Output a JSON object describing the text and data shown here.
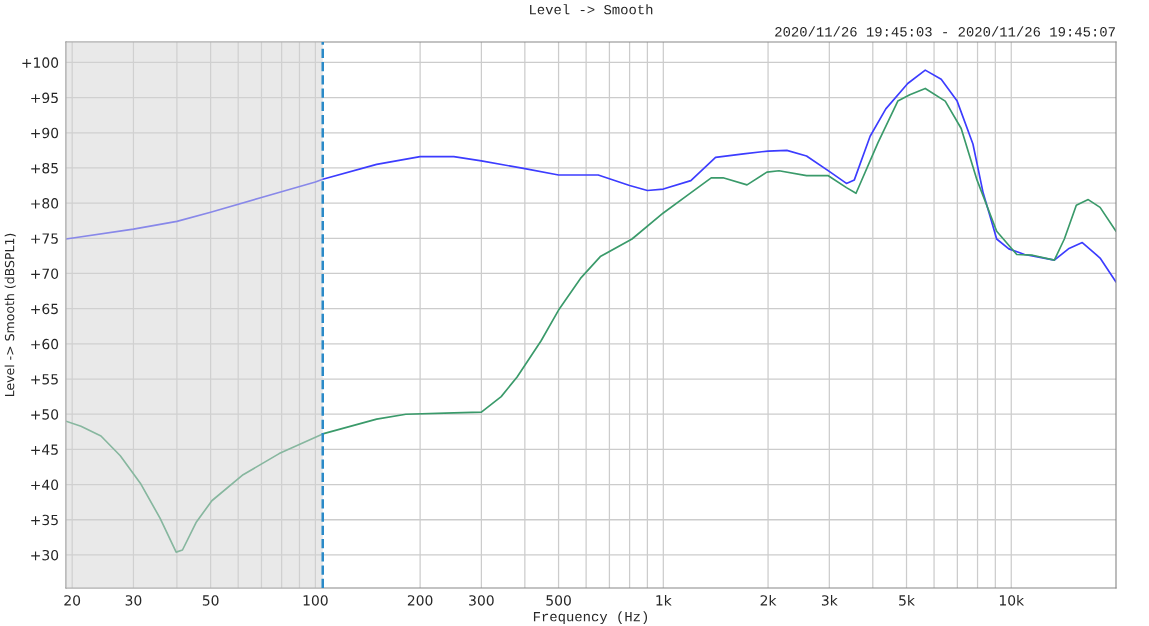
{
  "chart_data": {
    "type": "line",
    "title": "Level -> Smooth",
    "xlabel": "Frequency (Hz)",
    "ylabel": "Level -> Smooth (dBSPL1)",
    "annotations": [
      "2020/11/26 19:45:03 - 2020/11/26 19:45:07"
    ],
    "log": "x",
    "grid": true,
    "legend": false,
    "marker": "none",
    "line_style": "solid",
    "xlim": [
      19.2,
      20000
    ],
    "ylim": [
      25.3,
      102.9
    ],
    "xticks": [
      20,
      30,
      {
        "value": 40,
        "label": null
      },
      50,
      {
        "value": 60,
        "label": null
      },
      {
        "value": 70,
        "label": null
      },
      {
        "value": 80,
        "label": null
      },
      {
        "value": 90,
        "label": null
      },
      100,
      200,
      300,
      {
        "value": 400,
        "label": null
      },
      500,
      {
        "value": 600,
        "label": null
      },
      {
        "value": 700,
        "label": null
      },
      {
        "value": 800,
        "label": null
      },
      {
        "value": 900,
        "label": null
      },
      {
        "value": 1000,
        "label": "1k"
      },
      {
        "value": 2000,
        "label": "2k"
      },
      {
        "value": 3000,
        "label": "3k"
      },
      {
        "value": 4000,
        "label": null
      },
      {
        "value": 5000,
        "label": "5k"
      },
      {
        "value": 6000,
        "label": null
      },
      {
        "value": 7000,
        "label": null
      },
      {
        "value": 8000,
        "label": null
      },
      {
        "value": 9000,
        "label": null
      },
      {
        "value": 10000,
        "label": "10k"
      }
    ],
    "yticks": [
      {
        "value": 30,
        "label": "+30"
      },
      {
        "value": 35,
        "label": "+35"
      },
      {
        "value": 40,
        "label": "+40"
      },
      {
        "value": 45,
        "label": "+45"
      },
      {
        "value": 50,
        "label": "+50"
      },
      {
        "value": 55,
        "label": "+55"
      },
      {
        "value": 60,
        "label": "+60"
      },
      {
        "value": 65,
        "label": "+65"
      },
      {
        "value": 70,
        "label": "+70"
      },
      {
        "value": 75,
        "label": "+75"
      },
      {
        "value": 80,
        "label": "+80"
      },
      {
        "value": 85,
        "label": "+85"
      },
      {
        "value": 90,
        "label": "+90"
      },
      {
        "value": 95,
        "label": "+95"
      },
      {
        "value": 100,
        "label": "+100"
      }
    ],
    "bands": [
      {
        "axis": "x",
        "from": 19.2,
        "to": 105,
        "color": "#d4d4d4"
      }
    ],
    "ref_lines": [
      {
        "axis": "x",
        "value": 105,
        "color": "#2a8ac8",
        "line_style": "dashed"
      }
    ],
    "series": [
      {
        "color": "#3c3cff",
        "x": [
          19.2,
          30,
          40,
          50,
          70,
          100,
          105,
          150,
          200,
          250,
          300,
          400,
          500,
          650,
          800,
          900,
          1000,
          1200,
          1413,
          1700,
          2000,
          2265,
          2580,
          3020,
          3360,
          3540,
          3930,
          4360,
          5040,
          5660,
          6290,
          6990,
          7760,
          8290,
          9080,
          9840,
          10920,
          13300,
          14600,
          16000,
          18000,
          20000
        ],
        "values": [
          74.9,
          76.3,
          77.4,
          78.7,
          80.8,
          83.0,
          83.4,
          85.5,
          86.6,
          86.6,
          86.0,
          84.9,
          84.0,
          84.0,
          82.5,
          81.8,
          82.0,
          83.2,
          86.5,
          87.0,
          87.4,
          87.5,
          86.7,
          84.4,
          82.8,
          83.3,
          89.5,
          93.4,
          97.0,
          98.9,
          97.6,
          94.5,
          88.4,
          81.6,
          74.9,
          73.5,
          72.7,
          71.9,
          73.5,
          74.4,
          72.2,
          68.8
        ]
      },
      {
        "color": "#3a9a6a",
        "x": [
          19.2,
          21.2,
          24.2,
          27.5,
          31.4,
          35.8,
          39.8,
          41.5,
          45.4,
          50.4,
          62,
          78.7,
          105,
          150,
          182,
          250,
          300,
          342,
          380,
          445,
          500,
          578,
          659,
          813,
          1000,
          1172,
          1373,
          1485,
          1740,
          1985,
          2150,
          2580,
          2980,
          3360,
          3580,
          4140,
          4720,
          5110,
          5660,
          6460,
          7180,
          7970,
          9080,
          10370,
          11510,
          13300,
          14210,
          15380,
          16640,
          18000,
          20000
        ],
        "values": [
          49.0,
          48.3,
          46.9,
          44.1,
          40.2,
          35.2,
          30.4,
          30.7,
          34.6,
          37.7,
          41.4,
          44.4,
          47.2,
          49.3,
          50.0,
          50.2,
          50.3,
          52.5,
          55.3,
          60.4,
          64.8,
          69.3,
          72.4,
          74.9,
          78.6,
          81.1,
          83.6,
          83.6,
          82.6,
          84.4,
          84.6,
          83.9,
          83.9,
          82.2,
          81.4,
          88.6,
          94.5,
          95.4,
          96.3,
          94.5,
          90.6,
          83.3,
          76.0,
          72.7,
          72.6,
          71.9,
          74.9,
          79.7,
          80.5,
          79.4,
          76.0
        ]
      }
    ]
  }
}
